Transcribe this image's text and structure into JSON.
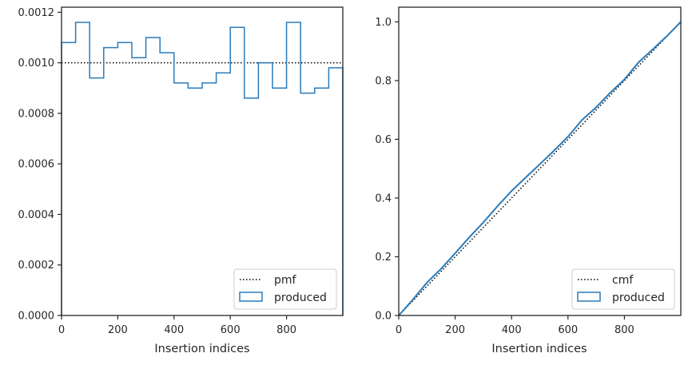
{
  "chart_data": [
    {
      "type": "histogram",
      "xlabel": "Insertion indices",
      "ylabel": "",
      "xlim": [
        0,
        1000
      ],
      "ylim": [
        0,
        0.00122
      ],
      "xticks": [
        0,
        200,
        400,
        600,
        800
      ],
      "xtick_labels": [
        "0",
        "200",
        "400",
        "600",
        "800"
      ],
      "yticks": [
        0,
        0.0002,
        0.0004,
        0.0006,
        0.0008,
        0.001,
        0.0012
      ],
      "ytick_labels": [
        "0.0000",
        "0.0002",
        "0.0004",
        "0.0006",
        "0.0008",
        "0.0010",
        "0.0012"
      ],
      "grid": false,
      "legend": {
        "position": "lower-right",
        "entries": [
          "pmf",
          "produced"
        ]
      },
      "reference_line": {
        "name": "pmf",
        "style": "dotted",
        "value": 0.001
      },
      "histogram": {
        "name": "produced",
        "style": "step",
        "bin_edges": [
          0,
          50,
          100,
          150,
          200,
          250,
          300,
          350,
          400,
          450,
          500,
          550,
          600,
          650,
          700,
          750,
          800,
          850,
          900,
          950,
          1000
        ],
        "values": [
          0.00108,
          0.00116,
          0.00094,
          0.00106,
          0.00108,
          0.00102,
          0.0011,
          0.00104,
          0.00092,
          0.0009,
          0.00092,
          0.00096,
          0.00114,
          0.00086,
          0.001,
          0.0009,
          0.00116,
          0.00088,
          0.0009,
          0.00098
        ]
      },
      "colors": {
        "produced": "#2b7bba",
        "pmf": "#000000"
      }
    },
    {
      "type": "line",
      "xlabel": "Insertion indices",
      "ylabel": "",
      "xlim": [
        0,
        1000
      ],
      "ylim": [
        0,
        1.05
      ],
      "xticks": [
        0,
        200,
        400,
        600,
        800
      ],
      "xtick_labels": [
        "0",
        "200",
        "400",
        "600",
        "800"
      ],
      "yticks": [
        0,
        0.2,
        0.4,
        0.6,
        0.8,
        1.0
      ],
      "ytick_labels": [
        "0.0",
        "0.2",
        "0.4",
        "0.6",
        "0.8",
        "1.0"
      ],
      "grid": false,
      "legend": {
        "position": "lower-right",
        "entries": [
          "cmf",
          "produced"
        ]
      },
      "series": [
        {
          "name": "cmf",
          "style": "dotted",
          "x": [
            0,
            1000
          ],
          "y": [
            0,
            1.0
          ]
        },
        {
          "name": "produced",
          "style": "solid",
          "x": [
            0,
            50,
            100,
            150,
            200,
            250,
            300,
            350,
            400,
            450,
            500,
            550,
            600,
            650,
            700,
            750,
            800,
            850,
            900,
            950,
            1000
          ],
          "y": [
            0,
            0.054,
            0.112,
            0.159,
            0.212,
            0.266,
            0.317,
            0.372,
            0.424,
            0.47,
            0.515,
            0.561,
            0.609,
            0.666,
            0.709,
            0.759,
            0.804,
            0.862,
            0.906,
            0.951,
            1.0
          ]
        }
      ],
      "colors": {
        "produced": "#2b7bba",
        "cmf": "#000000"
      }
    }
  ]
}
